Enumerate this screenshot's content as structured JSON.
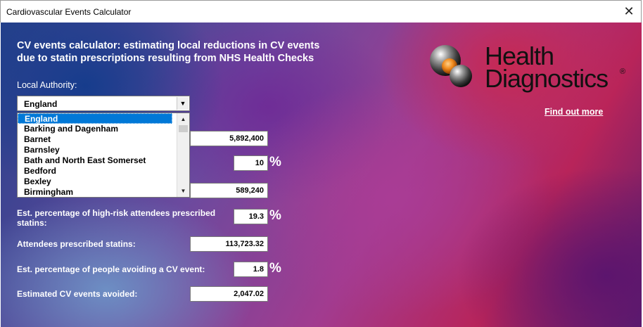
{
  "window": {
    "title": "Cardiovascular Events Calculator",
    "close_glyph": "✕"
  },
  "heading": {
    "line1": "CV events calculator: estimating local reductions in CV events",
    "line2": "due to statin prescriptions resulting from NHS Health Checks"
  },
  "local_authority": {
    "label": "Local Authority:",
    "selected": "England",
    "options": [
      "England",
      "Barking and Dagenham",
      "Barnet",
      "Barnsley",
      "Bath and North East Somerset",
      "Bedford",
      "Bexley",
      "Birmingham"
    ]
  },
  "fields": {
    "field1_value": "5,892,400",
    "field2_value": "10",
    "field3_value": "589,240",
    "statins_pct_label": "Est. percentage of high-risk attendees prescribed statins:",
    "statins_pct_value": "19.3",
    "attendees_statins_label": "Attendees prescribed statins:",
    "attendees_statins_value": "113,723.32",
    "avoid_pct_label": "Est. percentage of people avoiding a CV event:",
    "avoid_pct_value": "1.8",
    "events_avoided_label": "Estimated CV events avoided:",
    "events_avoided_value": "2,047.02"
  },
  "percent_symbol": "%",
  "logo": {
    "line1": "Health",
    "line2": "Diagnostics",
    "registered": "®"
  },
  "find_out_more": "Find out more",
  "colors": {
    "accent_selected": "#0078d7",
    "logo_orange": "#f08a1c"
  }
}
